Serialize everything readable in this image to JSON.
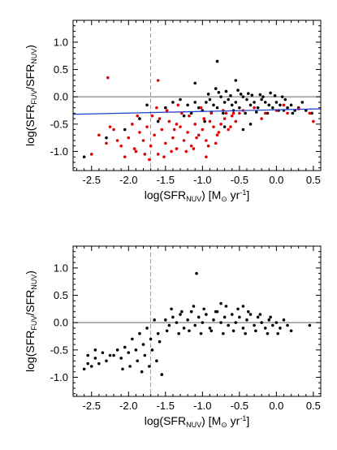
{
  "chart_data": [
    {
      "type": "scatter",
      "title": "",
      "xlabel": {
        "main": "log(SFR",
        "sub": "NUV",
        "units": ") [M",
        "sun": "⊙",
        "yr": " yr",
        "sup": "-1",
        "end": "]"
      },
      "ylabel": {
        "pre": "log(SFR",
        "sub1": "FUV",
        "mid": "/SFR",
        "sub2": "NUV",
        "end": ")"
      },
      "xlim": [
        -2.75,
        0.6
      ],
      "ylim": [
        -1.35,
        1.4
      ],
      "xticks": [
        "-2.5",
        "-2.0",
        "-1.5",
        "-1.0",
        "-0.5",
        "0.0",
        "0.5"
      ],
      "xtick_values": [
        -2.5,
        -2.0,
        -1.5,
        -1.0,
        -0.5,
        0.0,
        0.5
      ],
      "yticks": [
        "1.0",
        "0.5",
        "0.0",
        "-0.5",
        "-1.0"
      ],
      "ytick_values": [
        1.0,
        0.5,
        0.0,
        -0.5,
        -1.0
      ],
      "hline": {
        "y": 0.0,
        "color": "#666666"
      },
      "vline": {
        "x": -1.7,
        "style": "dashed",
        "color": "#888888"
      },
      "fit_line": {
        "x": [
          -2.75,
          0.6
        ],
        "y": [
          -0.32,
          -0.22
        ],
        "color": "#2244cc"
      },
      "series": [
        {
          "color": "#000000",
          "x": [
            -0.95,
            -0.9,
            -0.85,
            -0.8,
            -0.75,
            -0.7,
            -0.65,
            -0.6,
            -0.55,
            -0.5,
            -0.45,
            -0.4,
            -0.35,
            -0.3,
            -0.25,
            -0.2,
            -0.15,
            -0.1,
            -0.05,
            0.0,
            0.05,
            0.1,
            0.15,
            0.2,
            -1.0,
            -1.05,
            -1.1,
            -1.15,
            -1.2,
            -0.92,
            -0.78,
            -0.62,
            -0.48,
            -0.33,
            -0.18,
            -0.02,
            0.12,
            -0.88,
            -0.72,
            -0.58,
            -0.42,
            -0.27,
            -0.12,
            0.03,
            -1.3,
            -1.4,
            -1.5,
            -0.82,
            -0.68,
            -0.52,
            -0.38,
            -0.22,
            -0.08,
            0.08,
            0.22,
            0.3,
            0.4,
            0.48,
            -0.97,
            -2.05,
            -2.3,
            -1.85,
            -2.6,
            -0.8,
            -1.1,
            -0.55,
            -0.7,
            -0.35,
            -0.45,
            -1.25,
            -1.6,
            -1.75,
            0.25,
            0.35
          ],
          "y": [
            -0.1,
            -0.05,
            -0.15,
            -0.2,
            0.0,
            -0.1,
            -0.05,
            -0.15,
            -0.1,
            -0.2,
            0.0,
            -0.05,
            -0.15,
            -0.1,
            -0.2,
            -0.05,
            -0.1,
            -0.15,
            -0.2,
            -0.1,
            -0.15,
            -0.25,
            -0.2,
            -0.15,
            -0.25,
            -0.2,
            -0.1,
            -0.3,
            -0.15,
            0.05,
            0.08,
            0.02,
            0.05,
            0.03,
            0.0,
            0.02,
            -0.05,
            -0.28,
            -0.3,
            -0.25,
            -0.3,
            -0.28,
            -0.3,
            -0.25,
            -0.05,
            -0.1,
            -0.2,
            0.15,
            0.1,
            0.12,
            0.06,
            0.04,
            0.07,
            0.0,
            -0.3,
            -0.2,
            -0.25,
            -0.3,
            -0.45,
            -0.6,
            -0.75,
            -0.4,
            -1.1,
            0.65,
            0.25,
            0.3,
            -0.55,
            -0.5,
            -0.6,
            -0.35,
            -0.45,
            -0.15,
            -0.25,
            -0.1
          ]
        },
        {
          "color": "#e00000",
          "x": [
            -2.4,
            -2.3,
            -2.2,
            -2.1,
            -2.0,
            -1.95,
            -1.9,
            -1.85,
            -1.8,
            -1.75,
            -1.7,
            -1.65,
            -1.6,
            -1.55,
            -1.5,
            -1.45,
            -1.4,
            -1.35,
            -1.3,
            -1.25,
            -1.2,
            -1.15,
            -1.1,
            -1.05,
            -1.0,
            -0.95,
            -0.9,
            -0.85,
            -0.8,
            -0.75,
            -0.7,
            -0.65,
            -0.6,
            -0.55,
            -0.5,
            -2.25,
            -2.05,
            -1.88,
            -1.72,
            -1.58,
            -1.42,
            -1.28,
            -1.12,
            -0.98,
            -0.82,
            -0.68,
            -1.62,
            -1.48,
            -1.33,
            -1.18,
            -1.02,
            -0.88,
            -0.72,
            -0.58,
            -0.45,
            -0.3,
            -0.15,
            0.0,
            0.15,
            0.3,
            0.45,
            -1.92,
            -1.78,
            -1.52,
            -1.38,
            -1.22,
            -1.08,
            -0.92,
            -0.78,
            -0.62,
            -2.28,
            -1.6,
            -0.2,
            0.1,
            0.5,
            -2.5,
            -2.15,
            -1.68,
            -1.35,
            -0.95
          ],
          "y": [
            -0.7,
            -0.85,
            -0.6,
            -0.9,
            -0.75,
            -0.5,
            -1.0,
            -0.65,
            -0.8,
            -0.55,
            -0.9,
            -0.7,
            -1.05,
            -0.6,
            -0.85,
            -0.45,
            -0.75,
            -0.95,
            -0.55,
            -0.8,
            -0.65,
            -0.9,
            -0.5,
            -0.7,
            -0.6,
            -0.8,
            -0.45,
            -0.55,
            -0.7,
            -0.5,
            -0.4,
            -0.6,
            -0.35,
            -0.45,
            -0.3,
            -0.55,
            -1.1,
            -0.35,
            -1.15,
            -0.4,
            -1.0,
            -0.3,
            -0.95,
            -0.4,
            -0.85,
            -0.3,
            -0.2,
            -0.25,
            -0.15,
            -0.35,
            -0.2,
            -0.3,
            -0.25,
            -0.3,
            -0.25,
            -0.2,
            -0.3,
            -0.25,
            -0.3,
            -0.22,
            -0.3,
            -0.95,
            -1.05,
            -1.1,
            -0.6,
            -1.0,
            -0.75,
            -0.9,
            -0.65,
            -0.55,
            0.35,
            0.3,
            -0.4,
            -0.15,
            -0.45,
            -1.05,
            -0.8,
            -0.35,
            -0.5,
            -1.1
          ]
        }
      ]
    },
    {
      "type": "scatter",
      "title": "",
      "xlabel": {
        "main": "log(SFR",
        "sub": "NUV",
        "units": ") [M",
        "sun": "⊙",
        "yr": " yr",
        "sup": "-1",
        "end": "]"
      },
      "ylabel": {
        "pre": "log(SFR",
        "sub1": "FUV",
        "mid": "/SFR",
        "sub2": "NUV",
        "end": ")"
      },
      "xlim": [
        -2.75,
        0.6
      ],
      "ylim": [
        -1.35,
        1.4
      ],
      "xticks": [
        "-2.5",
        "-2.0",
        "-1.5",
        "-1.0",
        "-0.5",
        "0.0",
        "0.5"
      ],
      "xtick_values": [
        -2.5,
        -2.0,
        -1.5,
        -1.0,
        -0.5,
        0.0,
        0.5
      ],
      "yticks": [
        "1.0",
        "0.5",
        "0.0",
        "-0.5",
        "-1.0"
      ],
      "ytick_values": [
        1.0,
        0.5,
        0.0,
        -0.5,
        -1.0
      ],
      "hline": {
        "y": 0.0,
        "color": "#666666"
      },
      "vline": {
        "x": -1.7,
        "style": "dashed",
        "color": "#888888"
      },
      "series": [
        {
          "color": "#000000",
          "x": [
            -1.5,
            -1.45,
            -1.4,
            -1.35,
            -1.3,
            -1.25,
            -1.2,
            -1.15,
            -1.1,
            -1.05,
            -1.0,
            -0.95,
            -0.9,
            -0.85,
            -0.8,
            -0.75,
            -0.7,
            -0.65,
            -0.6,
            -0.55,
            -0.5,
            -0.45,
            -0.4,
            -0.35,
            -0.3,
            -0.25,
            -0.2,
            -0.15,
            -0.1,
            -0.05,
            0.0,
            0.05,
            0.1,
            0.15,
            0.2,
            -1.48,
            -1.32,
            -1.18,
            -1.02,
            -0.88,
            -0.72,
            -0.58,
            -0.42,
            -0.28,
            -0.12,
            0.02,
            -1.42,
            -1.28,
            -1.12,
            -0.98,
            -0.82,
            -0.68,
            -0.52,
            -0.38,
            -0.22,
            -0.08,
            -1.6,
            -1.7,
            -1.8,
            -1.9,
            -2.0,
            -2.1,
            -2.2,
            -2.3,
            -2.4,
            -2.5,
            -2.6,
            -1.65,
            -1.75,
            -1.85,
            -1.95,
            -2.05,
            -2.15,
            -2.25,
            -2.35,
            -2.45,
            -2.55,
            -1.58,
            -1.68,
            -1.78,
            -1.88,
            -1.98,
            -2.08,
            -1.08,
            -0.75,
            -0.45,
            0.45,
            -2.45,
            -2.55,
            -1.55,
            -1.62,
            -1.72,
            -1.82
          ],
          "y": [
            0.05,
            -0.05,
            0.1,
            0.0,
            0.15,
            -0.1,
            0.05,
            0.2,
            -0.05,
            0.1,
            0.0,
            0.15,
            -0.1,
            0.05,
            0.2,
            0.0,
            0.1,
            -0.05,
            0.15,
            0.0,
            0.1,
            -0.1,
            0.05,
            0.15,
            -0.05,
            0.1,
            0.0,
            -0.1,
            0.05,
            -0.05,
            0.0,
            -0.1,
            0.05,
            -0.05,
            -0.15,
            -0.15,
            -0.2,
            -0.15,
            -0.2,
            -0.15,
            -0.2,
            -0.15,
            -0.2,
            -0.15,
            -0.2,
            -0.2,
            0.25,
            0.2,
            0.3,
            0.25,
            0.2,
            0.3,
            0.25,
            0.2,
            0.15,
            0.1,
            -0.2,
            -0.3,
            -0.4,
            -0.5,
            -0.55,
            -0.65,
            -0.6,
            -0.7,
            -0.75,
            -0.8,
            -0.85,
            0.05,
            -0.1,
            -0.2,
            -0.3,
            -0.45,
            -0.5,
            -0.6,
            -0.55,
            -0.65,
            -0.75,
            -0.35,
            -0.5,
            -0.6,
            -0.7,
            -0.8,
            -0.85,
            0.9,
            0.35,
            0.3,
            -0.05,
            -0.5,
            -0.6,
            -0.95,
            -0.7,
            -0.8,
            -0.9
          ]
        }
      ]
    }
  ]
}
